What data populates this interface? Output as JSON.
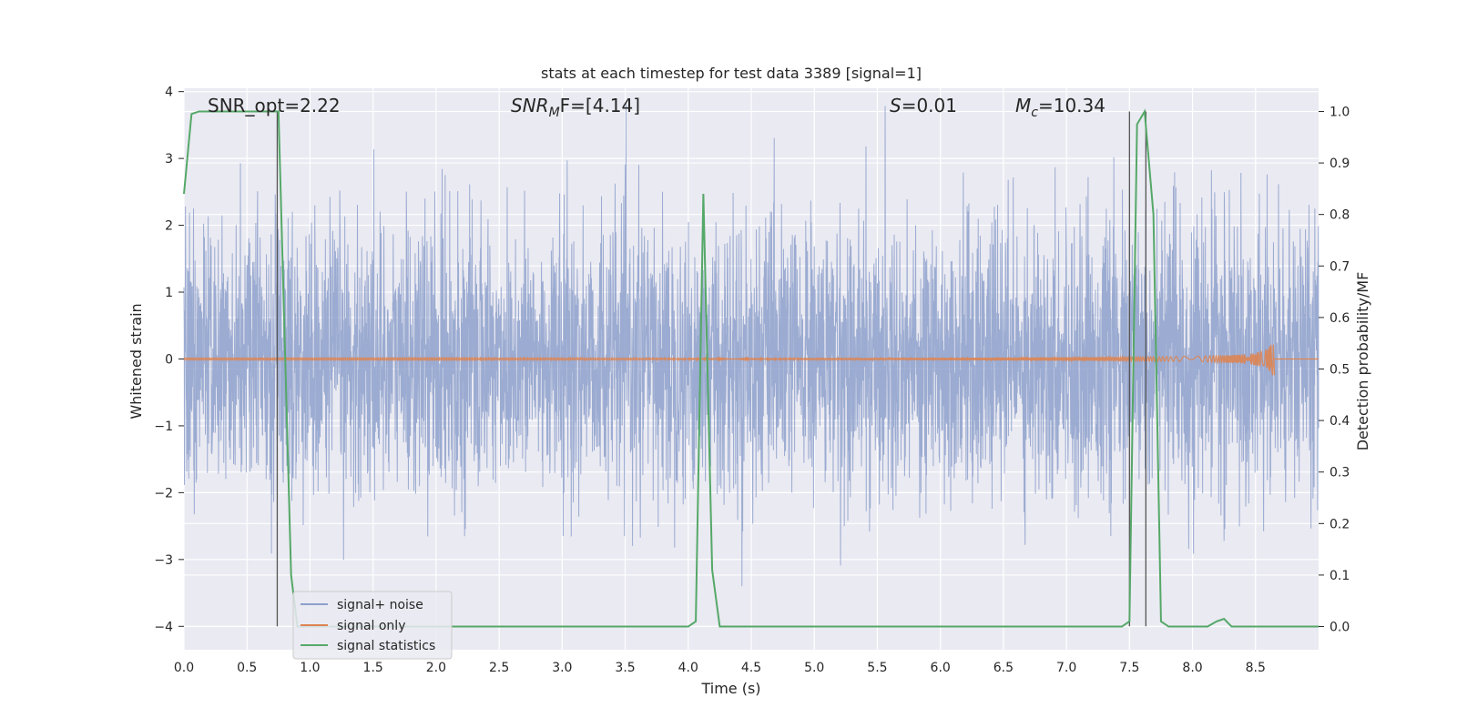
{
  "chart_data": {
    "type": "line",
    "title": "stats at each timestep for test data 3389 [signal=1]",
    "xlabel": "Time (s)",
    "ylabel_left": "Whitened strain",
    "ylabel_right": "Detection probability/MF",
    "xlim": [
      0,
      9.0
    ],
    "ylim_left": [
      -4.35,
      4.05
    ],
    "ylim_right": [
      -0.045,
      1.045
    ],
    "x_ticks": [
      "0.0",
      "0.5",
      "1.0",
      "1.5",
      "2.0",
      "2.5",
      "3.0",
      "3.5",
      "4.0",
      "4.5",
      "5.0",
      "5.5",
      "6.0",
      "6.5",
      "7.0",
      "7.5",
      "8.0",
      "8.5"
    ],
    "y_left_ticks": [
      "4",
      "3",
      "2",
      "1",
      "0",
      "−1",
      "−2",
      "−3",
      "−4"
    ],
    "y_right_ticks": [
      "1.0",
      "0.9",
      "0.8",
      "0.7",
      "0.6",
      "0.5",
      "0.4",
      "0.3",
      "0.2",
      "0.1",
      "0.0"
    ],
    "grid": true,
    "legend_position": "lower-left",
    "annotations": {
      "snr_opt": "SNR_opt=2.22",
      "snr_mf_main": "SNR",
      "snr_mf_sub": "M",
      "snr_mf_rest": "F=[4.14]",
      "s_main": "S",
      "s_rest": "=0.01",
      "mc_main": "M",
      "mc_sub": "c",
      "mc_rest": "=10.34"
    },
    "series": [
      {
        "name": "signal+ noise",
        "color": "#8da0cb",
        "noise_sigma": 1.0,
        "t_start": 0.0,
        "t_end": 9.0
      },
      {
        "name": "signal only",
        "color": "#dd8452",
        "t_start": 0.0,
        "t_end": 8.65,
        "chirp_peak_amplitude": 0.35
      },
      {
        "name": "signal statistics",
        "color": "#55a868",
        "axis": "right",
        "x": [
          0.0,
          0.06,
          0.12,
          0.25,
          0.5,
          0.7,
          0.75,
          0.85,
          0.9,
          1.0,
          2.0,
          3.0,
          4.0,
          4.06,
          4.12,
          4.19,
          4.25,
          5.0,
          6.0,
          7.0,
          7.44,
          7.5,
          7.56,
          7.62,
          7.69,
          7.75,
          7.81,
          8.0,
          8.12,
          8.19,
          8.25,
          8.31,
          8.5,
          9.0
        ],
        "y": [
          0.84,
          0.995,
          1.0,
          1.0,
          1.0,
          1.0,
          1.0,
          0.1,
          0.0,
          0.0,
          0.0,
          0.0,
          0.0,
          0.01,
          0.84,
          0.11,
          0.0,
          0.0,
          0.0,
          0.0,
          0.0,
          0.01,
          0.975,
          1.0,
          0.8,
          0.01,
          0.0,
          0.0,
          0.0,
          0.01,
          0.015,
          0.0,
          0.0,
          0.0
        ]
      }
    ],
    "vertical_markers_x": [
      0.74,
      7.5,
      7.63
    ]
  }
}
